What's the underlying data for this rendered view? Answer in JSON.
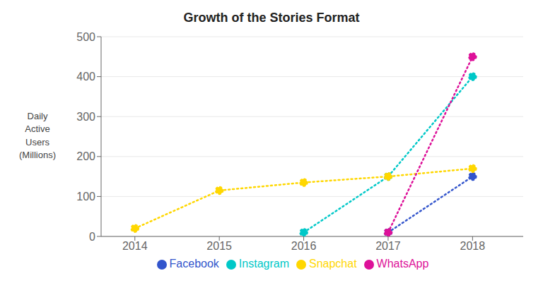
{
  "chart_data": {
    "type": "line",
    "title": "Growth of the Stories Format",
    "ylabel": "Daily\nActive\nUsers\n(Millions)",
    "xlim": [
      2013.6,
      2018.6
    ],
    "xticks": [
      2014,
      2015,
      2016,
      2017,
      2018
    ],
    "ylim": [
      0,
      500
    ],
    "yticks": [
      0,
      100,
      200,
      300,
      400,
      500
    ],
    "grid": true,
    "legend": "bottom",
    "marker": "circle",
    "line_style": "dotted",
    "series": [
      {
        "name": "Facebook",
        "color": "#3355cc",
        "x": [
          2017,
          2018
        ],
        "values": [
          10,
          150
        ]
      },
      {
        "name": "Instagram",
        "color": "#00c8c8",
        "x": [
          2016,
          2017,
          2018
        ],
        "values": [
          10,
          150,
          400
        ]
      },
      {
        "name": "Snapchat",
        "color": "#ffd700",
        "x": [
          2014,
          2015,
          2016,
          2017,
          2018
        ],
        "values": [
          20,
          115,
          135,
          150,
          170
        ]
      },
      {
        "name": "WhatsApp",
        "color": "#dd1199",
        "x": [
          2017,
          2018
        ],
        "values": [
          10,
          450
        ]
      }
    ]
  }
}
